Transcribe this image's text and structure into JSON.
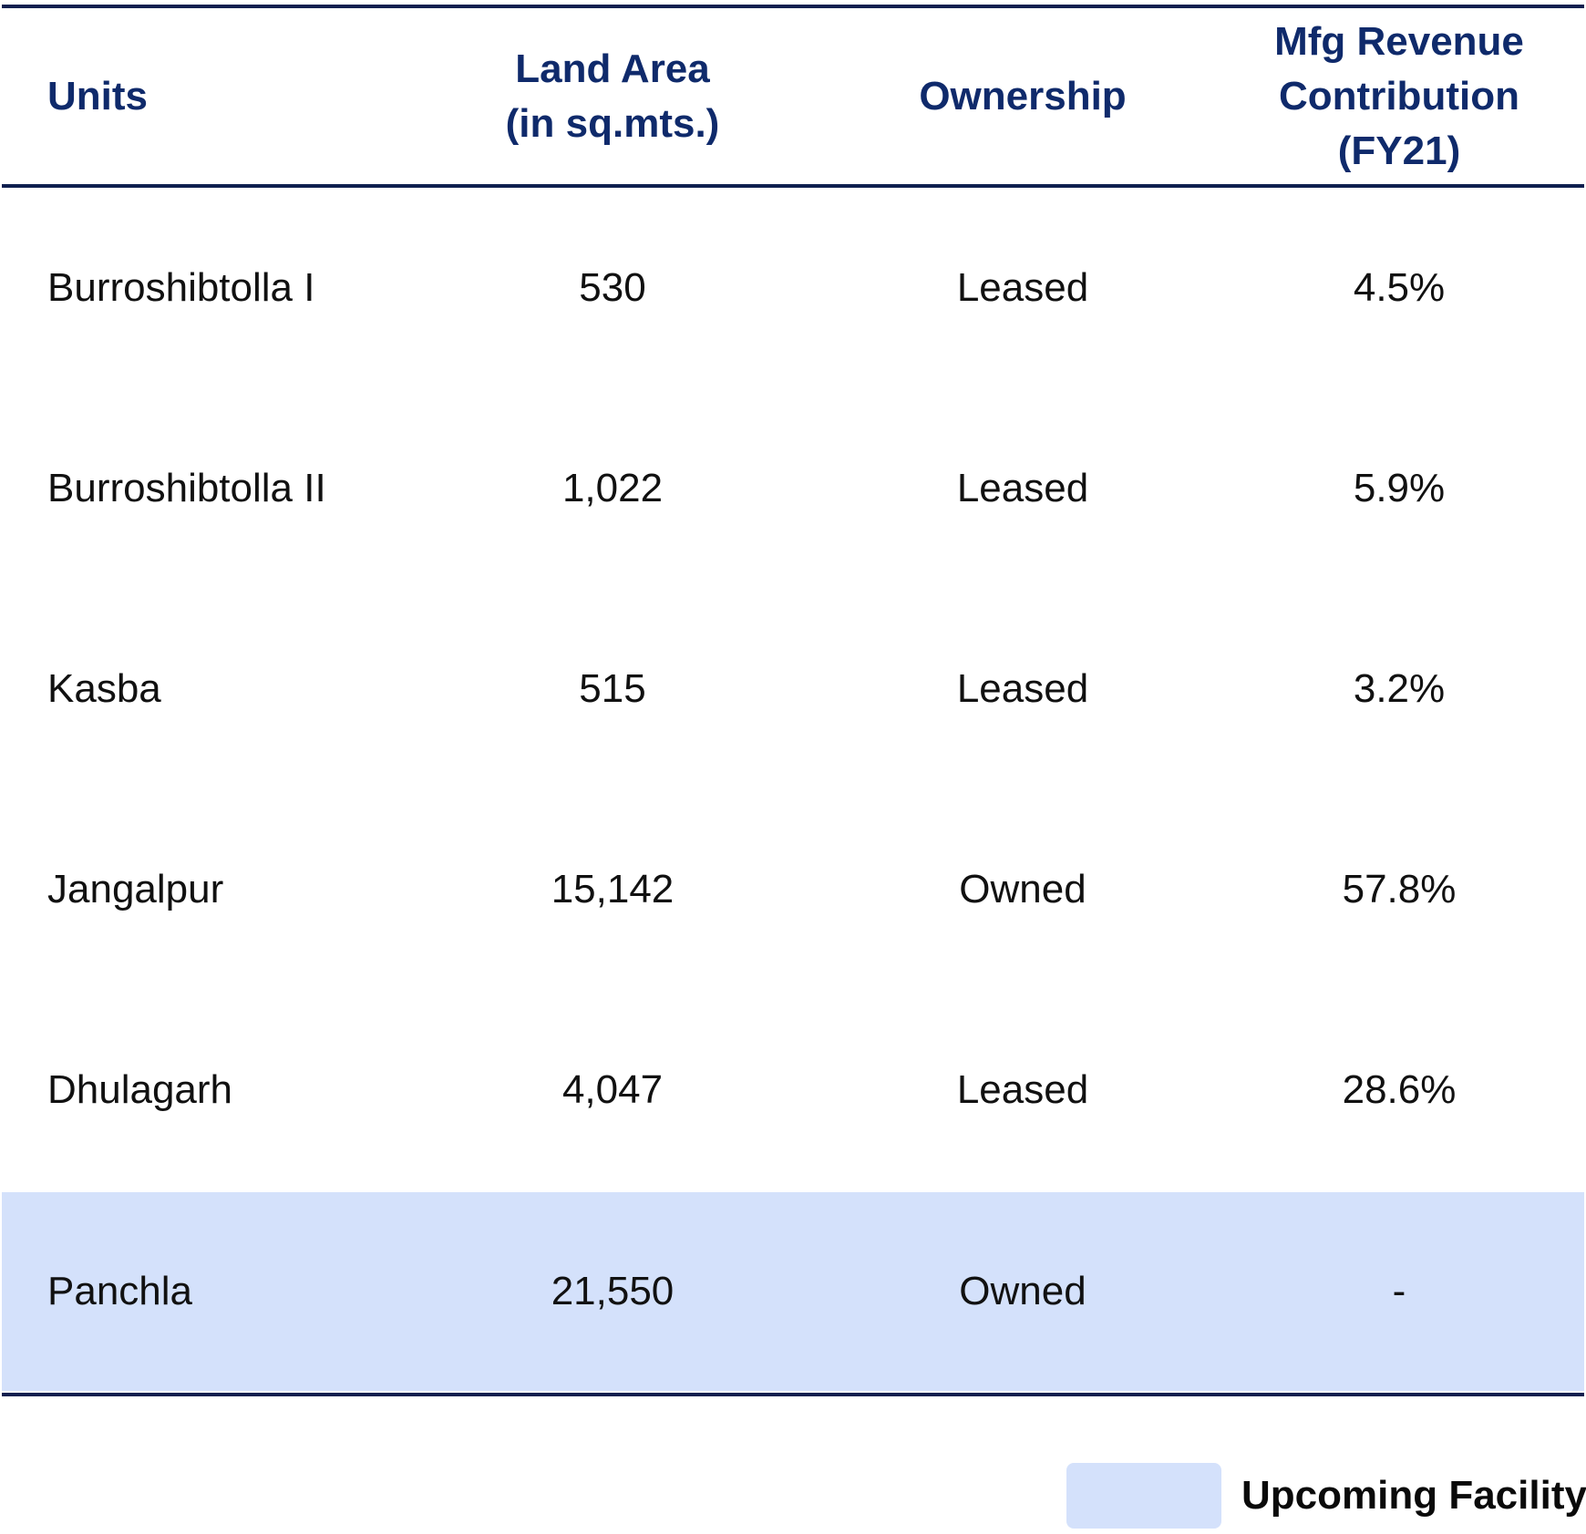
{
  "table": {
    "headers": [
      "Units",
      "Land Area\n(in sq.mts.)",
      "Ownership",
      "Mfg Revenue\nContribution\n(FY21)"
    ],
    "rows": [
      [
        "Burroshibtolla I",
        "530",
        "Leased",
        "4.5%"
      ],
      [
        "Burroshibtolla II",
        "1,022",
        "Leased",
        "5.9%"
      ],
      [
        "Kasba",
        "515",
        "Leased",
        "3.2%"
      ],
      [
        "Jangalpur",
        "15,142",
        "Owned",
        "57.8%"
      ],
      [
        "Dhulagarh",
        "4,047",
        "Leased",
        "28.6%"
      ],
      [
        "Panchla",
        "21,550",
        "Owned",
        "-"
      ]
    ],
    "highlighted_row_color": "#d4e1fb",
    "header_color": "#0f2a6b",
    "rule_color": "#0f1f4f"
  },
  "legend": {
    "label": "Upcoming Facility",
    "swatch_color": "#d4e1fb"
  }
}
